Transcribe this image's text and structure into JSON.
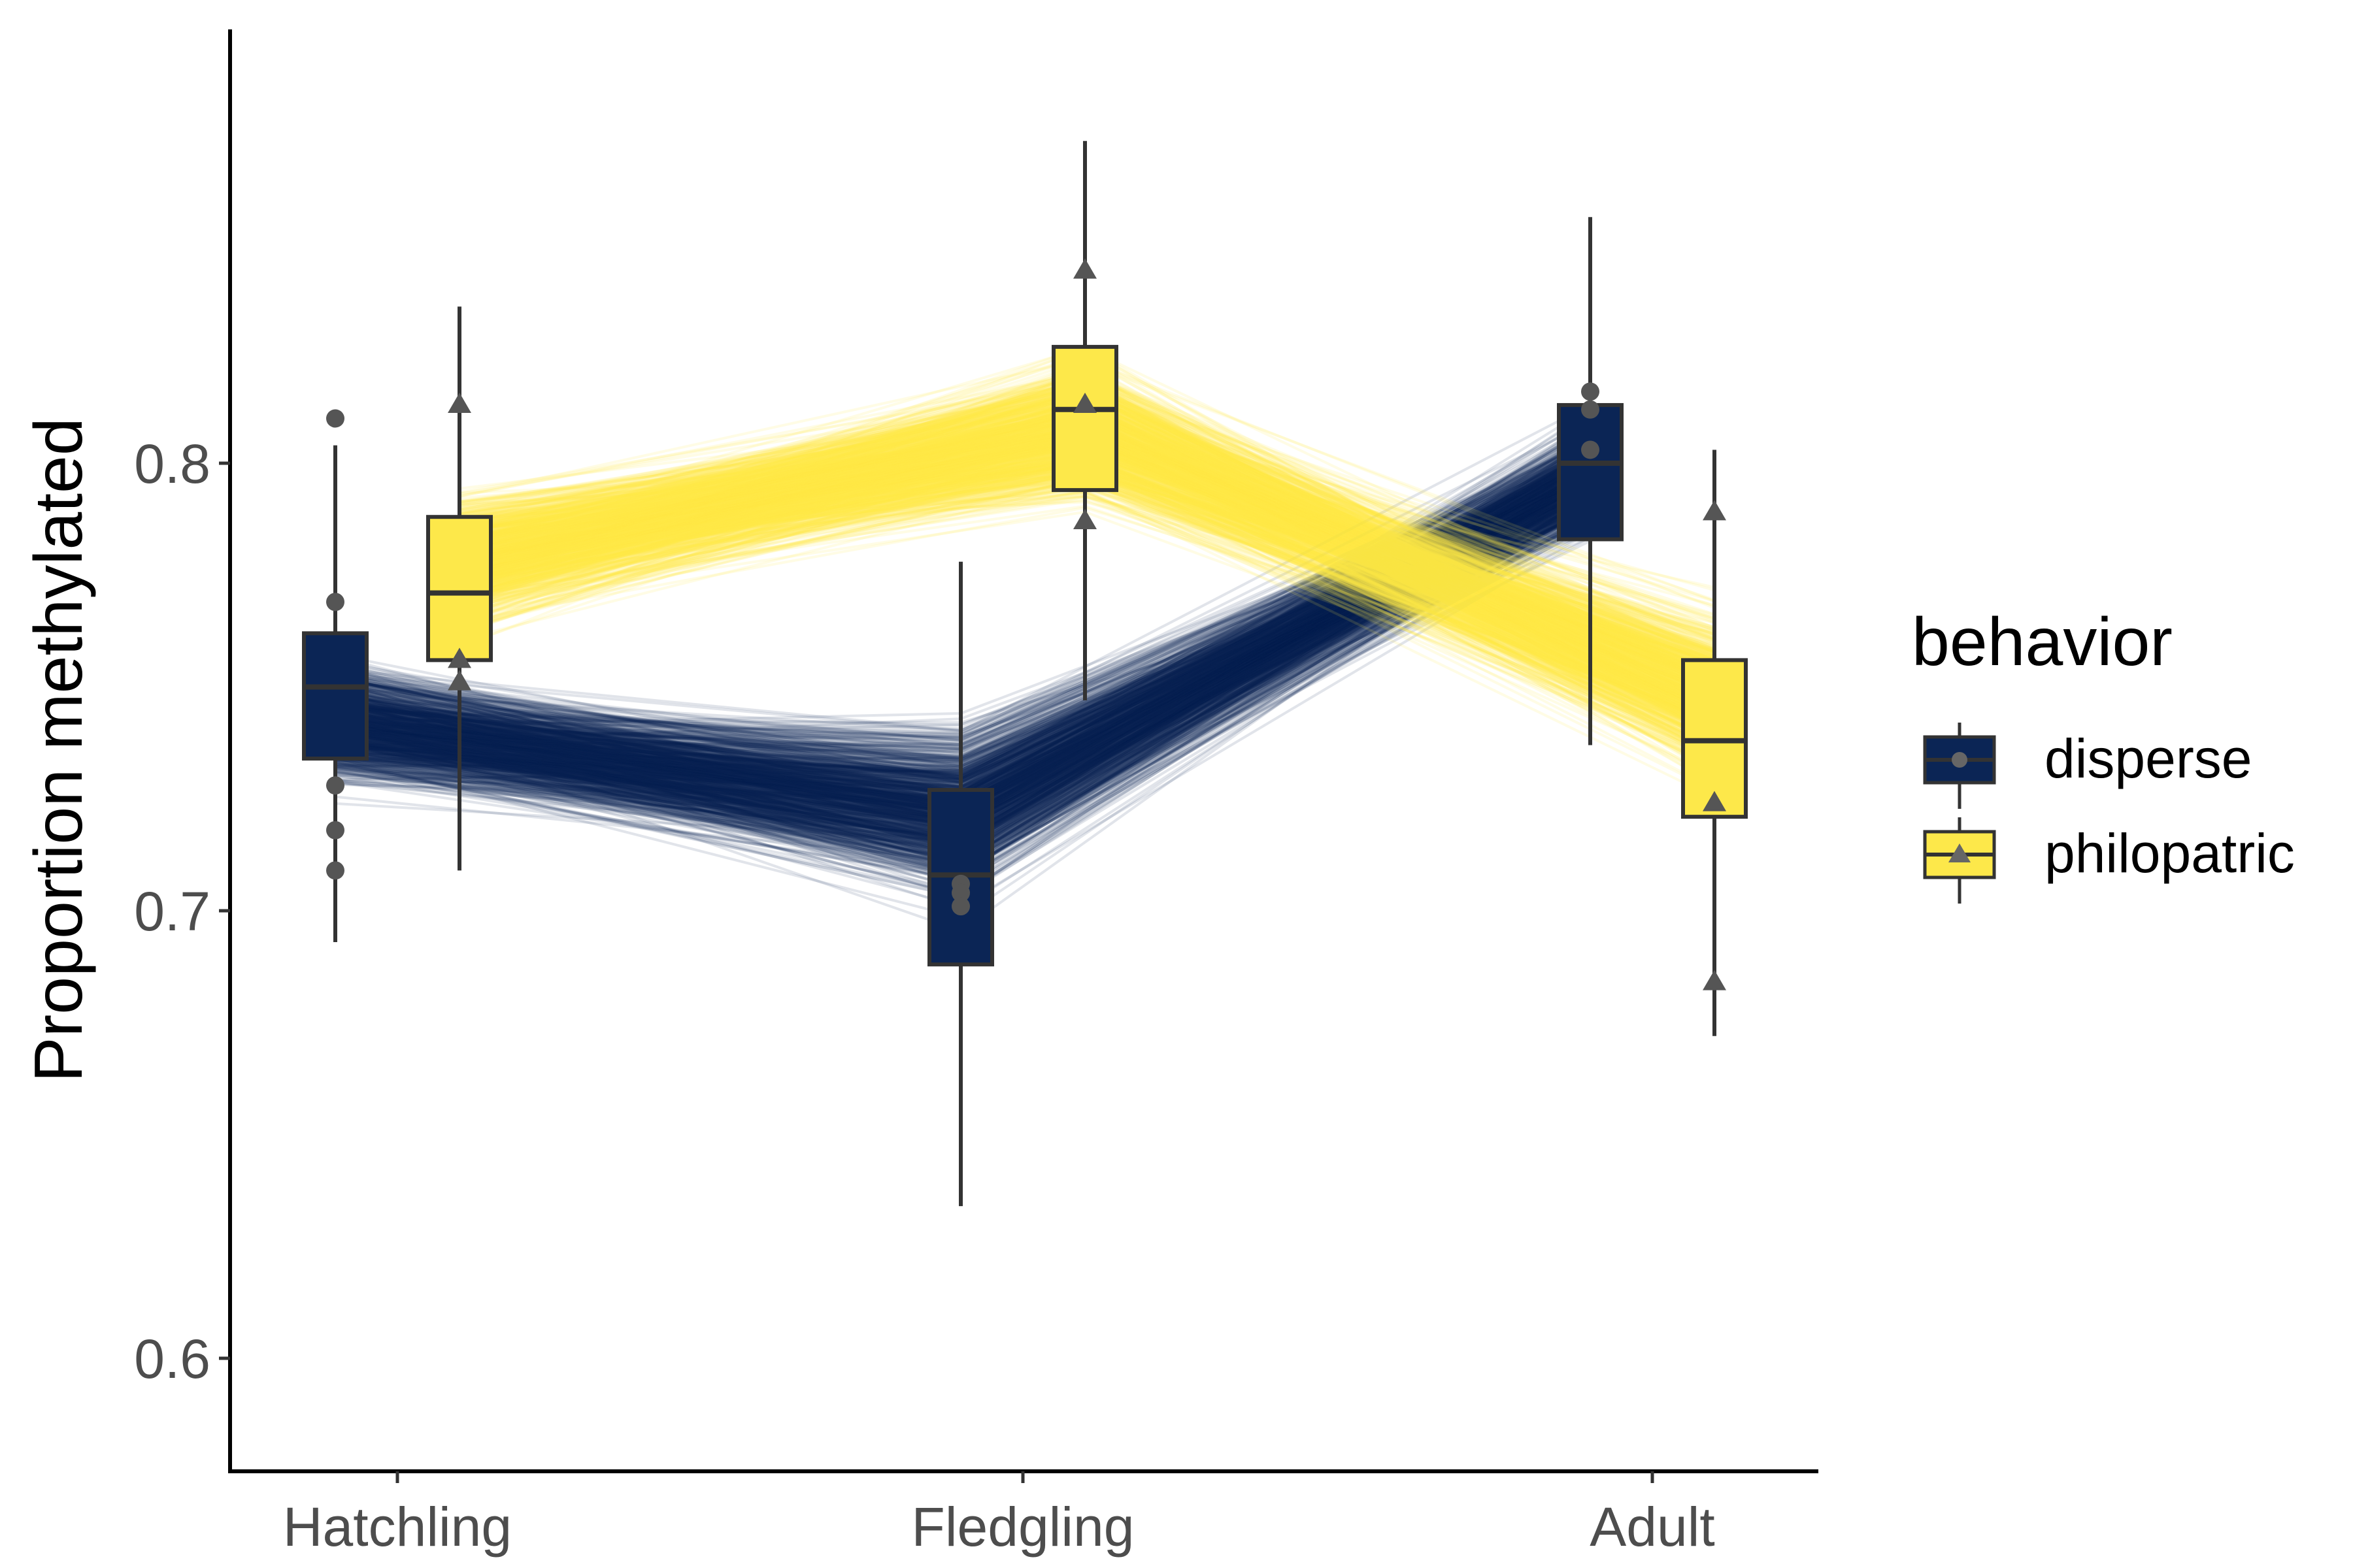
{
  "chart_data": {
    "type": "boxplot-with-trajectories",
    "ylabel": "Proportion methylated",
    "xlabel": "",
    "categories": [
      "Hatchling",
      "Fledgling",
      "Adult"
    ],
    "y_ticks": [
      0.6,
      0.7,
      0.8
    ],
    "y_tick_labels": [
      "0.6",
      "0.7",
      "0.8"
    ],
    "ylim": [
      0.574,
      0.902
    ],
    "legend": {
      "title": "behavior",
      "position": "right",
      "entries": [
        {
          "label": "disperse",
          "color": "#0b2555",
          "marker": "circle"
        },
        {
          "label": "philopatric",
          "color": "#fde84a",
          "marker": "triangle"
        }
      ]
    },
    "series": [
      {
        "name": "disperse",
        "color": "#0b2555",
        "trajectory_center": [
          0.742,
          0.722,
          0.797
        ],
        "boxes": [
          {
            "category": "Hatchling",
            "whisker_low": 0.693,
            "q1": 0.734,
            "median": 0.75,
            "q3": 0.762,
            "whisker_high": 0.804
          },
          {
            "category": "Fledgling",
            "whisker_low": 0.634,
            "q1": 0.688,
            "median": 0.708,
            "q3": 0.727,
            "whisker_high": 0.778
          },
          {
            "category": "Adult",
            "whisker_low": 0.737,
            "q1": 0.783,
            "median": 0.8,
            "q3": 0.813,
            "whisker_high": 0.855
          }
        ],
        "points": [
          {
            "category": "Hatchling",
            "values": [
              0.81,
              0.769,
              0.728,
              0.718,
              0.709
            ]
          },
          {
            "category": "Fledgling",
            "values": [
              0.706,
              0.704,
              0.701
            ]
          },
          {
            "category": "Adult",
            "values": [
              0.816,
              0.812,
              0.803
            ]
          }
        ]
      },
      {
        "name": "philopatric",
        "color": "#fde84a",
        "trajectory_center": [
          0.778,
          0.808,
          0.748
        ],
        "boxes": [
          {
            "category": "Hatchling",
            "whisker_low": 0.709,
            "q1": 0.756,
            "median": 0.771,
            "q3": 0.788,
            "whisker_high": 0.835
          },
          {
            "category": "Fledgling",
            "whisker_low": 0.747,
            "q1": 0.794,
            "median": 0.812,
            "q3": 0.826,
            "whisker_high": 0.872
          },
          {
            "category": "Adult",
            "whisker_low": 0.672,
            "q1": 0.721,
            "median": 0.738,
            "q3": 0.756,
            "whisker_high": 0.803
          }
        ],
        "points": [
          {
            "category": "Hatchling",
            "values": [
              0.813,
              0.756,
              0.751
            ]
          },
          {
            "category": "Fledgling",
            "values": [
              0.843,
              0.813,
              0.787
            ]
          },
          {
            "category": "Adult",
            "values": [
              0.789,
              0.724,
              0.684
            ]
          }
        ]
      }
    ]
  }
}
